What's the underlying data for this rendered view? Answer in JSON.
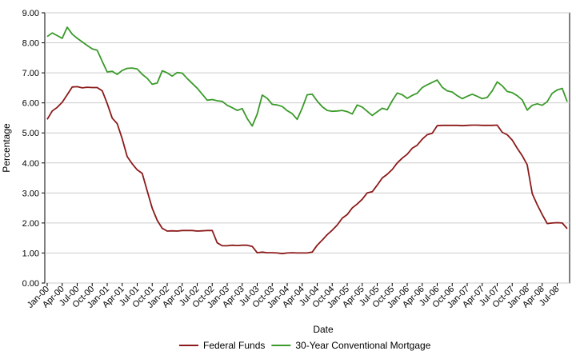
{
  "chart_data": {
    "type": "line",
    "title": "",
    "xlabel": "Date",
    "ylabel": "Percentage",
    "ylim": [
      0,
      9
    ],
    "yticks": [
      "0.00",
      "1.00",
      "2.00",
      "3.00",
      "4.00",
      "5.00",
      "6.00",
      "7.00",
      "8.00",
      "9.00"
    ],
    "grid": true,
    "legend_position": "bottom",
    "x_tick_labels": [
      "Jan-00",
      "Apr-00",
      "Jul-00",
      "Oct-00",
      "Jan-01",
      "Apr-01",
      "Jul-01",
      "Oct-01",
      "Jan-02",
      "Apr-02",
      "Jul-02",
      "Oct-02",
      "Jan-03",
      "Apr-03",
      "Jul-03",
      "Oct-03",
      "Jan-04",
      "Apr-04",
      "Jul-04",
      "Oct-04",
      "Jan-05",
      "Apr-05",
      "Jul-05",
      "Oct-05",
      "Jan-06",
      "Apr-06",
      "Jul-06",
      "Oct-06",
      "Jan-07",
      "Apr-07",
      "Jul-07",
      "Oct-07",
      "Jan-08",
      "Apr-08",
      "Jul-08"
    ],
    "x_start": "Jan-00",
    "x_end": "Sep-08",
    "series": [
      {
        "name": "Federal Funds",
        "color": "#8b1a1a",
        "values": [
          5.45,
          5.73,
          5.85,
          6.02,
          6.27,
          6.53,
          6.54,
          6.5,
          6.52,
          6.51,
          6.51,
          6.4,
          5.98,
          5.49,
          5.31,
          4.8,
          4.21,
          3.97,
          3.77,
          3.65,
          3.07,
          2.49,
          2.09,
          1.82,
          1.73,
          1.74,
          1.73,
          1.75,
          1.75,
          1.75,
          1.73,
          1.74,
          1.75,
          1.75,
          1.34,
          1.24,
          1.24,
          1.26,
          1.25,
          1.26,
          1.26,
          1.22,
          1.01,
          1.03,
          1.01,
          1.01,
          1.0,
          0.98,
          1.0,
          1.01,
          1.0,
          1.0,
          1.0,
          1.03,
          1.26,
          1.43,
          1.61,
          1.76,
          1.93,
          2.16,
          2.28,
          2.5,
          2.63,
          2.79,
          3.0,
          3.04,
          3.26,
          3.5,
          3.62,
          3.78,
          4.0,
          4.16,
          4.29,
          4.49,
          4.59,
          4.79,
          4.94,
          4.99,
          5.24,
          5.25,
          5.25,
          5.25,
          5.25,
          5.24,
          5.25,
          5.26,
          5.26,
          5.25,
          5.25,
          5.25,
          5.26,
          5.02,
          4.94,
          4.76,
          4.49,
          4.24,
          3.94,
          2.98,
          2.61,
          2.28,
          1.98,
          2.0,
          2.01,
          2.0,
          1.81
        ]
      },
      {
        "name": "30-Year Conventional Mortgage",
        "color": "#3a9a2a",
        "values": [
          8.21,
          8.33,
          8.24,
          8.15,
          8.52,
          8.29,
          8.15,
          8.03,
          7.91,
          7.8,
          7.75,
          7.38,
          7.03,
          7.05,
          6.95,
          7.08,
          7.15,
          7.16,
          7.13,
          6.95,
          6.82,
          6.62,
          6.66,
          7.07,
          7.0,
          6.89,
          7.01,
          6.99,
          6.81,
          6.65,
          6.49,
          6.29,
          6.09,
          6.11,
          6.07,
          6.05,
          5.92,
          5.84,
          5.75,
          5.81,
          5.48,
          5.23,
          5.63,
          6.26,
          6.15,
          5.95,
          5.93,
          5.88,
          5.74,
          5.64,
          5.45,
          5.83,
          6.27,
          6.29,
          6.06,
          5.87,
          5.75,
          5.72,
          5.73,
          5.75,
          5.71,
          5.63,
          5.93,
          5.86,
          5.72,
          5.58,
          5.7,
          5.82,
          5.77,
          6.07,
          6.33,
          6.27,
          6.15,
          6.25,
          6.32,
          6.51,
          6.6,
          6.68,
          6.76,
          6.52,
          6.4,
          6.36,
          6.24,
          6.14,
          6.22,
          6.29,
          6.22,
          6.14,
          6.18,
          6.4,
          6.7,
          6.57,
          6.38,
          6.34,
          6.24,
          6.1,
          5.76,
          5.92,
          5.97,
          5.92,
          6.04,
          6.32,
          6.43,
          6.48,
          6.04
        ]
      }
    ]
  }
}
